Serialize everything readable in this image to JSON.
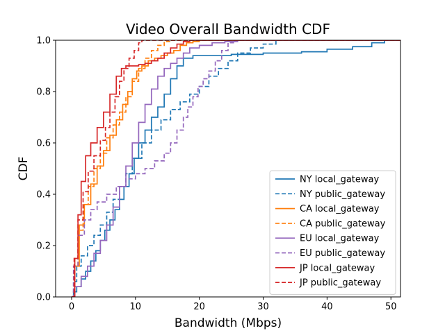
{
  "chart_data": {
    "type": "line",
    "title": "Video Overall Bandwidth CDF",
    "xlabel": "Bandwidth (Mbps)",
    "ylabel": "CDF",
    "xlim": [
      -2.5,
      51.5
    ],
    "ylim": [
      0,
      1.0
    ],
    "xticks": [
      0,
      10,
      20,
      30,
      40,
      50
    ],
    "yticks": [
      0.0,
      0.2,
      0.4,
      0.6,
      0.8,
      1.0
    ],
    "xtick_labels": [
      "0",
      "10",
      "20",
      "30",
      "40",
      "50"
    ],
    "ytick_labels": [
      "0.0",
      "0.2",
      "0.4",
      "0.6",
      "0.8",
      "1.0"
    ],
    "grid": false,
    "legend_position": "lower-right",
    "series": [
      {
        "name": "NY local_gateway",
        "color": "#1f77b4",
        "dash": "solid",
        "x": [
          0,
          0.3,
          0.8,
          1.5,
          2.2,
          3,
          3.8,
          4.5,
          5.2,
          6,
          6.8,
          7.5,
          8.2,
          9,
          9.8,
          10.5,
          11.5,
          12.5,
          13.5,
          14.5,
          15.5,
          16.5,
          17.5,
          19,
          21,
          25,
          30,
          33,
          36,
          40,
          44,
          47,
          49
        ],
        "y": [
          0,
          0.02,
          0.04,
          0.07,
          0.1,
          0.14,
          0.18,
          0.22,
          0.26,
          0.3,
          0.34,
          0.38,
          0.43,
          0.48,
          0.54,
          0.6,
          0.65,
          0.7,
          0.74,
          0.79,
          0.85,
          0.9,
          0.93,
          0.94,
          0.94,
          0.945,
          0.95,
          0.95,
          0.955,
          0.965,
          0.975,
          0.99,
          1.0
        ]
      },
      {
        "name": "NY public_gateway",
        "color": "#1f77b4",
        "dash": "dashed",
        "x": [
          0,
          0.3,
          0.8,
          1.5,
          2.5,
          3.5,
          4.5,
          5.5,
          6.5,
          7.5,
          8.5,
          9.5,
          11,
          12.5,
          14,
          15.5,
          17,
          18.5,
          20,
          21.5,
          23,
          24.5,
          26,
          28,
          30,
          32
        ],
        "y": [
          0,
          0.06,
          0.12,
          0.16,
          0.2,
          0.24,
          0.28,
          0.33,
          0.38,
          0.43,
          0.48,
          0.54,
          0.6,
          0.65,
          0.69,
          0.73,
          0.76,
          0.79,
          0.82,
          0.86,
          0.89,
          0.92,
          0.95,
          0.97,
          0.985,
          1.0
        ]
      },
      {
        "name": "CA local_gateway",
        "color": "#ff7f0e",
        "dash": "solid",
        "x": [
          0,
          0.5,
          1.2,
          2,
          3,
          4,
          5,
          6,
          7,
          8,
          8.8,
          9.5,
          10.2,
          11,
          12,
          13,
          14,
          15,
          16,
          17,
          18,
          19,
          20,
          22,
          24
        ],
        "y": [
          0,
          0.12,
          0.28,
          0.36,
          0.44,
          0.51,
          0.57,
          0.63,
          0.69,
          0.75,
          0.8,
          0.85,
          0.88,
          0.9,
          0.92,
          0.93,
          0.94,
          0.95,
          0.96,
          0.98,
          0.99,
          0.995,
          1.0,
          1.0,
          1.0
        ]
      },
      {
        "name": "CA public_gateway",
        "color": "#ff7f0e",
        "dash": "dashed",
        "x": [
          0,
          0.4,
          1,
          1.8,
          2.6,
          3.5,
          4.5,
          5.5,
          6.5,
          7.5,
          8.5,
          9.5,
          10.5,
          11.5,
          12.5,
          13.5,
          14.5,
          15.5
        ],
        "y": [
          0,
          0.12,
          0.26,
          0.36,
          0.43,
          0.5,
          0.56,
          0.62,
          0.67,
          0.72,
          0.78,
          0.84,
          0.89,
          0.93,
          0.96,
          0.98,
          0.995,
          1.0
        ]
      },
      {
        "name": "EU local_gateway",
        "color": "#9467bd",
        "dash": "solid",
        "x": [
          0,
          0.5,
          1.5,
          2.5,
          3.5,
          4.5,
          5.5,
          6.5,
          7.5,
          8.5,
          9.5,
          10.5,
          11.5,
          12.5,
          13.5,
          14.5,
          15.5,
          16.5,
          17.5,
          18.5,
          20,
          22,
          24,
          26
        ],
        "y": [
          0,
          0.04,
          0.08,
          0.12,
          0.17,
          0.22,
          0.28,
          0.35,
          0.43,
          0.51,
          0.6,
          0.68,
          0.75,
          0.81,
          0.86,
          0.89,
          0.91,
          0.93,
          0.95,
          0.97,
          0.98,
          0.99,
          0.995,
          1.0
        ]
      },
      {
        "name": "EU public_gateway",
        "color": "#9467bd",
        "dash": "dashed",
        "x": [
          0,
          0.3,
          1,
          2,
          3,
          4,
          5.5,
          7,
          8.5,
          10,
          11.5,
          13,
          14.5,
          15.5,
          16.5,
          17.5,
          18.2,
          19,
          19.8,
          20.6,
          21.5,
          22.5,
          23.5,
          24.5,
          25.5
        ],
        "y": [
          0,
          0.12,
          0.24,
          0.3,
          0.34,
          0.37,
          0.4,
          0.43,
          0.46,
          0.48,
          0.5,
          0.53,
          0.56,
          0.6,
          0.65,
          0.7,
          0.74,
          0.78,
          0.82,
          0.85,
          0.88,
          0.92,
          0.96,
          0.99,
          1.0
        ]
      },
      {
        "name": "JP local_gateway",
        "color": "#d62728",
        "dash": "solid",
        "x": [
          0,
          0.5,
          1,
          1.5,
          2.2,
          3,
          4,
          5,
          6,
          7,
          7.8,
          8.5,
          9.5,
          10.5,
          11.5,
          12.5,
          13.5,
          14.5,
          15.5,
          16.5,
          17.5,
          18.5
        ],
        "y": [
          0,
          0.15,
          0.32,
          0.45,
          0.55,
          0.6,
          0.66,
          0.72,
          0.79,
          0.86,
          0.89,
          0.9,
          0.9,
          0.905,
          0.91,
          0.92,
          0.93,
          0.95,
          0.97,
          0.985,
          0.995,
          1.0
        ]
      },
      {
        "name": "JP public_gateway",
        "color": "#d62728",
        "dash": "dashed",
        "x": [
          0,
          0.4,
          1,
          1.8,
          2.6,
          3.5,
          4.5,
          5.3,
          6,
          6.8,
          7.5,
          8.2,
          9,
          9.8,
          10.5,
          11
        ],
        "y": [
          0,
          0.15,
          0.3,
          0.41,
          0.49,
          0.55,
          0.61,
          0.66,
          0.72,
          0.78,
          0.84,
          0.89,
          0.93,
          0.96,
          0.99,
          1.0
        ]
      }
    ]
  }
}
